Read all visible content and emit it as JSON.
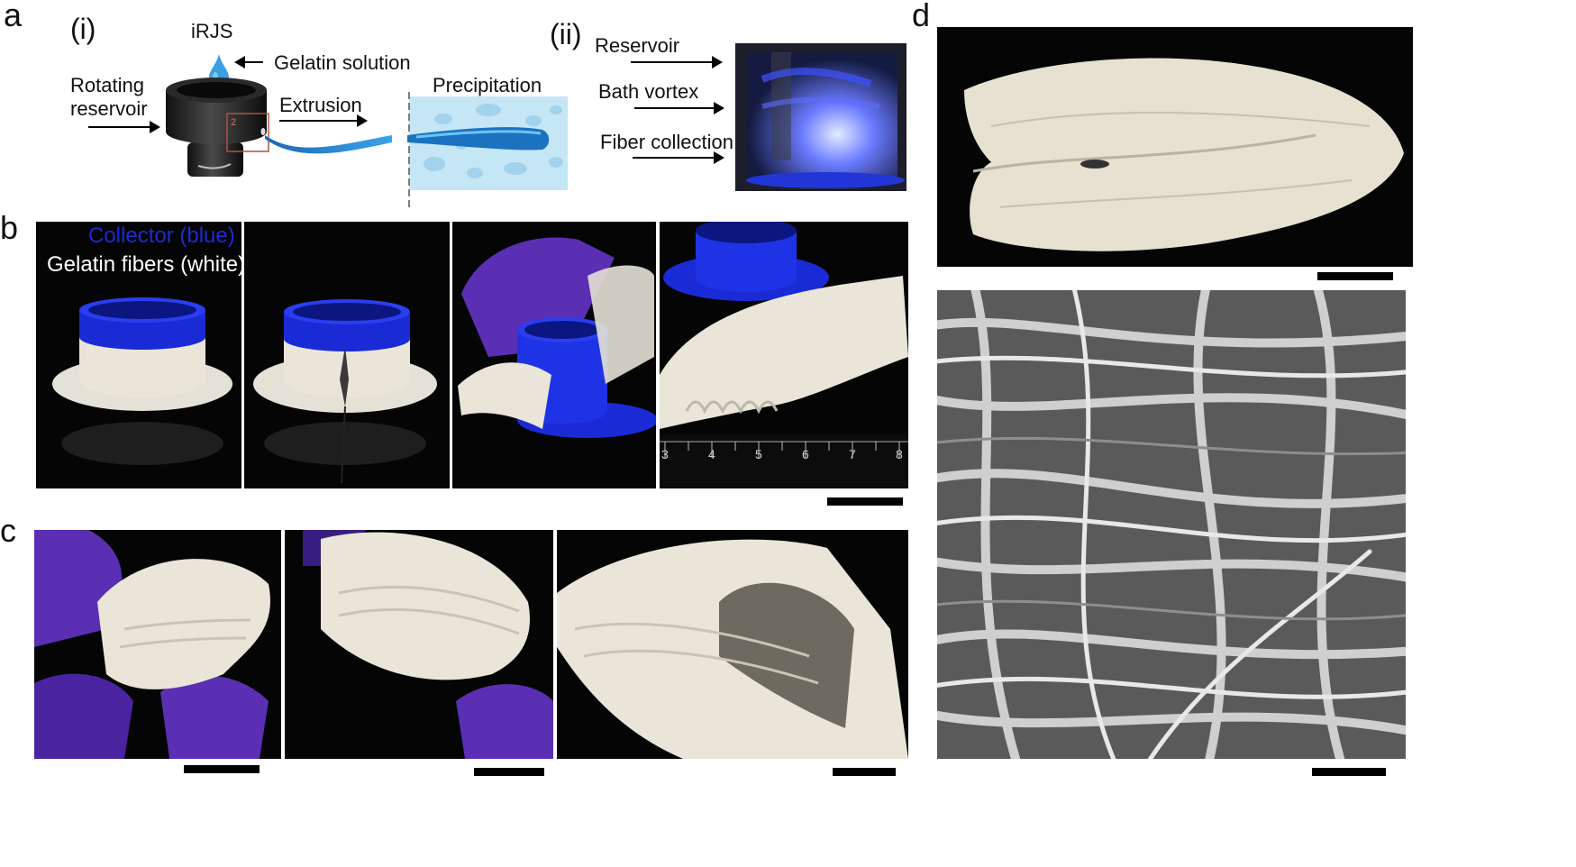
{
  "panels": {
    "a": {
      "letter": "a",
      "sub_i": "(i)",
      "sub_ii": "(ii)",
      "device": "iRJS",
      "gelatin_solution": "Gelatin solution",
      "rotating": "Rotating",
      "reservoir": "reservoir",
      "extrusion": "Extrusion",
      "precipitation": "Precipitation",
      "inset_number": "2",
      "steps": [
        "Reservoir",
        "Bath vortex",
        "Fiber collection"
      ]
    },
    "b": {
      "letter": "b",
      "collector_label": "Collector (blue)",
      "fibers_label": "Gelatin fibers (white)",
      "ruler_numbers": [
        "3",
        "4",
        "5",
        "6",
        "7",
        "8"
      ]
    },
    "c": {
      "letter": "c"
    },
    "d": {
      "letter": "d"
    }
  },
  "colors": {
    "collector_blue": "#1a2bd6",
    "glove_purple": "#5b2fb3",
    "gelatin_white": "#e9e6d9",
    "droplet_blue": "#2f8fd8",
    "bath_blue": "#bfe2f4"
  }
}
